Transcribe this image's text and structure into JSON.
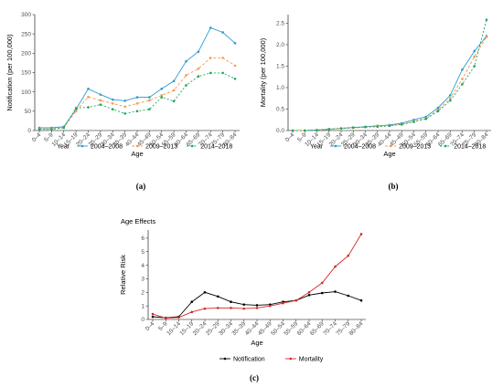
{
  "chart_data": [
    {
      "type": "line",
      "panel_label": "(a)",
      "title": "",
      "xlabel": "Age",
      "ylabel": "Notification (per 100,000)",
      "legend_title": "Year",
      "legend_position": "bottom",
      "grid": false,
      "ylim": [
        0,
        300
      ],
      "yticks": [
        "0",
        "50",
        "100",
        "150",
        "200",
        "250",
        "300"
      ],
      "categories": [
        "0–4",
        "5–9",
        "10–14",
        "15–19",
        "20–24",
        "25–29",
        "30–34",
        "35–39",
        "40–44",
        "45–49",
        "50–54",
        "55–59",
        "60–64",
        "65–69",
        "70–74",
        "75–79",
        "80–84"
      ],
      "series": [
        {
          "name": "2004–2008",
          "color": "#2b9bd4",
          "values": [
            7,
            7,
            10,
            55,
            108,
            93,
            80,
            77,
            86,
            86,
            108,
            128,
            179,
            204,
            266,
            254,
            226
          ]
        },
        {
          "name": "2009–2013",
          "color": "#f59b4b",
          "values": [
            4,
            4,
            8,
            50,
            87,
            78,
            70,
            62,
            70,
            78,
            91,
            104,
            143,
            160,
            188,
            188,
            168
          ]
        },
        {
          "name": "2014–2018",
          "color": "#1aa85f",
          "values": [
            3,
            3,
            7,
            58,
            60,
            67,
            55,
            44,
            50,
            55,
            86,
            76,
            117,
            140,
            149,
            149,
            134
          ]
        }
      ]
    },
    {
      "type": "line",
      "panel_label": "(b)",
      "title": "",
      "xlabel": "Age",
      "ylabel": "Mortality (per 100,000)",
      "legend_title": "Year",
      "legend_position": "bottom",
      "grid": false,
      "ylim": [
        0,
        2.7
      ],
      "yticks": [
        "0.0",
        "0.5",
        "1.0",
        "1.5",
        "2.0",
        "2.5"
      ],
      "categories": [
        "0–4",
        "5–9",
        "10–14",
        "15–19",
        "20–24",
        "25–29",
        "30–34",
        "35–39",
        "40–44",
        "45–49",
        "50–54",
        "55–59",
        "60–64",
        "65–69",
        "70–74",
        "75–79",
        "80–84"
      ],
      "series": [
        {
          "name": "2004–2008",
          "color": "#2b9bd4",
          "values": [
            0.0,
            0.0,
            0.01,
            0.03,
            0.05,
            0.07,
            0.09,
            0.11,
            0.13,
            0.17,
            0.25,
            0.32,
            0.53,
            0.82,
            1.42,
            1.85,
            2.2
          ]
        },
        {
          "name": "2009–2013",
          "color": "#f59b4b",
          "values": [
            0.0,
            0.0,
            0.01,
            0.03,
            0.05,
            0.06,
            0.08,
            0.1,
            0.12,
            0.15,
            0.22,
            0.28,
            0.48,
            0.75,
            1.2,
            1.72,
            2.18
          ]
        },
        {
          "name": "2014–2018",
          "color": "#1aa85f",
          "values": [
            0.0,
            0.0,
            0.01,
            0.03,
            0.05,
            0.07,
            0.08,
            0.09,
            0.11,
            0.14,
            0.2,
            0.27,
            0.45,
            0.7,
            1.08,
            1.5,
            2.58
          ]
        }
      ]
    },
    {
      "type": "line",
      "panel_label": "(c)",
      "title": "Age Effects",
      "xlabel": "Age",
      "ylabel": "Relative Risk",
      "legend_title": "",
      "legend_position": "bottom",
      "grid": false,
      "ylim": [
        0,
        6.6
      ],
      "yticks": [
        "0",
        "1",
        "2",
        "3",
        "4",
        "5",
        "6"
      ],
      "categories": [
        "0–4",
        "5–9",
        "10–14",
        "15–19",
        "20–24",
        "25–29",
        "30–34",
        "35–39",
        "40–44",
        "45–49",
        "50–54",
        "55–59",
        "60–64",
        "65–69",
        "70–74",
        "75–79",
        "80–84"
      ],
      "series": [
        {
          "name": "Notification",
          "color": "#000000",
          "values": [
            0.2,
            0.12,
            0.2,
            1.3,
            2.0,
            1.7,
            1.3,
            1.1,
            1.05,
            1.1,
            1.3,
            1.4,
            1.8,
            1.95,
            2.05,
            1.75,
            1.4
          ]
        },
        {
          "name": "Mortality",
          "color": "#d62728",
          "values": [
            0.4,
            0.1,
            0.15,
            0.55,
            0.8,
            0.85,
            0.85,
            0.8,
            0.85,
            1.0,
            1.2,
            1.4,
            2.0,
            2.7,
            3.9,
            4.7,
            6.3
          ]
        }
      ]
    }
  ]
}
